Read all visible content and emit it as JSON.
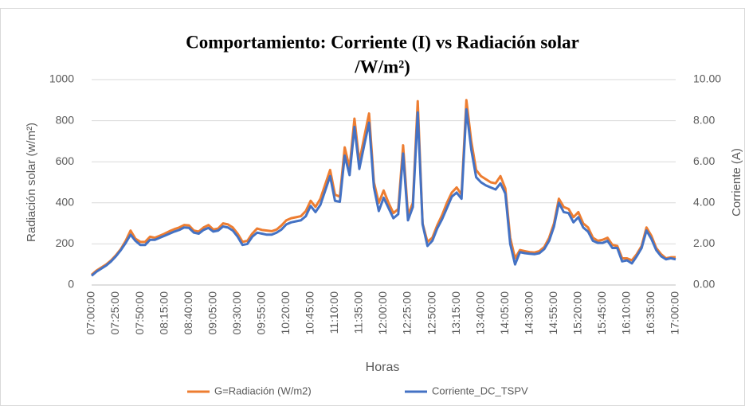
{
  "chart_data": {
    "type": "line",
    "title": [
      "Comportamiento: Corriente (I) vs Radiación solar",
      "/W/m²)"
    ],
    "x_label": "Horas",
    "y_label": "Radiación solar (w/m²)",
    "y2_label": "Corriente (A)",
    "categories": [
      "07:00:00",
      null,
      null,
      null,
      null,
      "07:25:00",
      null,
      null,
      null,
      null,
      "07:50:00",
      null,
      null,
      null,
      null,
      "08:15:00",
      null,
      null,
      null,
      null,
      "08:40:00",
      null,
      null,
      null,
      null,
      "09:05:00",
      null,
      null,
      null,
      null,
      "09:30:00",
      null,
      null,
      null,
      null,
      "09:55:00",
      null,
      null,
      null,
      null,
      "10:20:00",
      null,
      null,
      null,
      null,
      "10:45:00",
      null,
      null,
      null,
      null,
      "11:10:00",
      null,
      null,
      null,
      null,
      "11:35:00",
      null,
      null,
      null,
      null,
      "12:00:00",
      null,
      null,
      null,
      null,
      "12:25:00",
      null,
      null,
      null,
      null,
      "12:50:00",
      null,
      null,
      null,
      null,
      "13:15:00",
      null,
      null,
      null,
      null,
      "13:40:00",
      null,
      null,
      null,
      null,
      "14:05:00",
      null,
      null,
      null,
      null,
      "14:30:00",
      null,
      null,
      null,
      null,
      "14:55:00",
      null,
      null,
      null,
      null,
      "15:20:00",
      null,
      null,
      null,
      null,
      "15:45:00",
      null,
      null,
      null,
      null,
      "16:10:00",
      null,
      null,
      null,
      null,
      "16:35:00",
      null,
      null,
      null,
      null,
      "17:00:00"
    ],
    "series": [
      {
        "name": "G=Radiación (W/m2)",
        "color": "#ed7d31",
        "values": [
          50,
          70,
          85,
          100,
          120,
          145,
          175,
          215,
          265,
          225,
          210,
          210,
          235,
          230,
          240,
          250,
          262,
          272,
          280,
          292,
          290,
          265,
          260,
          280,
          292,
          270,
          275,
          300,
          295,
          280,
          250,
          210,
          215,
          250,
          275,
          268,
          265,
          262,
          270,
          290,
          315,
          325,
          330,
          335,
          360,
          410,
          380,
          420,
          490,
          560,
          440,
          430,
          670,
          570,
          810,
          600,
          720,
          835,
          500,
          400,
          460,
          400,
          350,
          370,
          680,
          340,
          400,
          895,
          300,
          210,
          230,
          290,
          340,
          400,
          450,
          475,
          440,
          900,
          700,
          560,
          530,
          515,
          500,
          495,
          530,
          470,
          230,
          130,
          170,
          165,
          160,
          158,
          165,
          185,
          230,
          300,
          420,
          380,
          370,
          330,
          355,
          300,
          280,
          230,
          215,
          220,
          230,
          195,
          190,
          130,
          130,
          120,
          150,
          190,
          280,
          240,
          180,
          150,
          130,
          135,
          135
        ]
      },
      {
        "name": "Corriente_DC_TSPV",
        "color": "#4472c4",
        "axis": "y2",
        "values": [
          0.45,
          0.65,
          0.8,
          0.95,
          1.15,
          1.4,
          1.7,
          2.05,
          2.45,
          2.15,
          1.95,
          1.95,
          2.2,
          2.2,
          2.3,
          2.4,
          2.5,
          2.6,
          2.68,
          2.8,
          2.78,
          2.55,
          2.5,
          2.68,
          2.78,
          2.6,
          2.65,
          2.85,
          2.8,
          2.65,
          2.35,
          1.95,
          2.0,
          2.35,
          2.55,
          2.5,
          2.45,
          2.45,
          2.55,
          2.7,
          2.95,
          3.05,
          3.1,
          3.15,
          3.35,
          3.85,
          3.55,
          3.9,
          4.6,
          5.3,
          4.1,
          4.05,
          6.3,
          5.35,
          7.7,
          5.65,
          6.8,
          7.9,
          4.75,
          3.6,
          4.25,
          3.75,
          3.25,
          3.45,
          6.4,
          3.15,
          3.8,
          8.4,
          2.95,
          1.9,
          2.15,
          2.75,
          3.2,
          3.75,
          4.3,
          4.5,
          4.2,
          8.55,
          6.6,
          5.25,
          5.0,
          4.85,
          4.75,
          4.65,
          4.95,
          4.45,
          2.0,
          1.0,
          1.6,
          1.55,
          1.52,
          1.5,
          1.55,
          1.75,
          2.15,
          2.85,
          4.0,
          3.55,
          3.5,
          3.05,
          3.3,
          2.8,
          2.6,
          2.15,
          2.05,
          2.05,
          2.15,
          1.8,
          1.8,
          1.15,
          1.2,
          1.05,
          1.4,
          1.8,
          2.65,
          2.25,
          1.7,
          1.4,
          1.25,
          1.3,
          1.25
        ]
      }
    ],
    "ylim": [
      0,
      1000
    ],
    "yticks": [
      0,
      200,
      400,
      600,
      800,
      1000
    ],
    "y2lim": [
      0,
      10
    ],
    "y2ticks": [
      {
        "value": 0,
        "label": "0.00"
      },
      {
        "value": 2,
        "label": "2.00"
      },
      {
        "value": 4,
        "label": "4.00"
      },
      {
        "value": 6,
        "label": "6.00"
      },
      {
        "value": 8,
        "label": "8.00"
      },
      {
        "value": 10,
        "label": "10.00"
      }
    ],
    "grid": true,
    "legend": "bottom"
  }
}
